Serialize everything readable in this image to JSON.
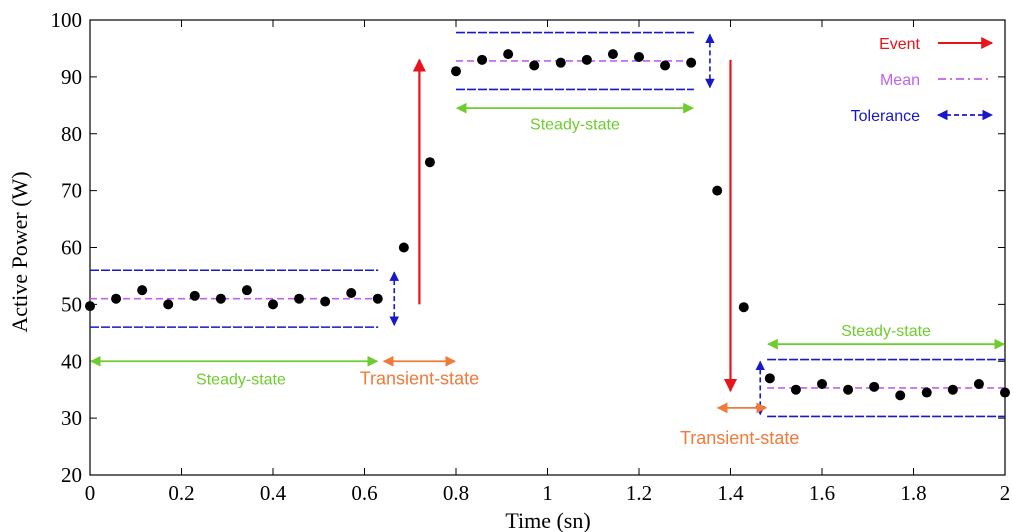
{
  "chart_data": {
    "type": "scatter",
    "title": "",
    "xlabel": "Time (sn)",
    "ylabel": "Active Power (W)",
    "xlim": [
      0,
      2
    ],
    "ylim": [
      20,
      100
    ],
    "xticks": [
      0,
      0.2,
      0.4,
      0.6,
      0.8,
      1,
      1.2,
      1.4,
      1.6,
      1.8,
      2
    ],
    "xtick_labels": [
      "0",
      "0.2",
      "0.4",
      "0.6",
      "0.8",
      "1",
      "1.2",
      "1.4",
      "1.6",
      "1.8",
      "2"
    ],
    "yticks": [
      20,
      30,
      40,
      50,
      60,
      70,
      80,
      90,
      100
    ],
    "ytick_labels": [
      "20",
      "30",
      "40",
      "50",
      "60",
      "70",
      "80",
      "90",
      "100"
    ],
    "grid": false,
    "legend_position": "top-right",
    "colors": {
      "points": "#000000",
      "event": "#e8141b",
      "mean": "#c061f0",
      "tolerance": "#1818c8",
      "steady": "#6fcc2e",
      "transient": "#f07a3a"
    },
    "legend": [
      {
        "label": "Event",
        "kind": "event"
      },
      {
        "label": "Mean",
        "kind": "mean"
      },
      {
        "label": "Tolerance",
        "kind": "tolerance"
      }
    ],
    "series": [
      {
        "x": [
          0,
          0.057,
          0.114,
          0.171,
          0.229,
          0.286,
          0.343,
          0.4,
          0.457,
          0.514,
          0.571,
          0.629,
          0.686,
          0.743,
          0.8,
          0.857,
          0.914,
          0.971,
          1.029,
          1.086,
          1.143,
          1.2,
          1.257,
          1.314,
          1.371,
          1.429,
          1.486,
          1.543,
          1.6,
          1.657,
          1.714,
          1.771,
          1.829,
          1.886,
          1.943,
          2.0
        ],
        "y": [
          49.7,
          51,
          52.5,
          50,
          51.5,
          51,
          52.5,
          50,
          51,
          50.5,
          52,
          51,
          60,
          75,
          91,
          93,
          94,
          92,
          92.5,
          93,
          94,
          93.5,
          92,
          92.5,
          70,
          49.5,
          37,
          35,
          36,
          35,
          35.5,
          34,
          34.5,
          35,
          36,
          34.5
        ]
      }
    ],
    "steady_segments": [
      {
        "x_start": 0,
        "x_end": 0.63,
        "mean": 51,
        "tol_upper": 56,
        "tol_lower": 46
      },
      {
        "x_start": 0.8,
        "x_end": 1.32,
        "mean": 92.8,
        "tol_upper": 97.8,
        "tol_lower": 87.8
      },
      {
        "x_start": 1.48,
        "x_end": 2.0,
        "mean": 35.3,
        "tol_upper": 40.3,
        "tol_lower": 30.3
      }
    ],
    "events": [
      {
        "x": 0.72,
        "y_from": 50,
        "y_to": 93
      },
      {
        "x": 1.4,
        "y_from": 93,
        "y_to": 34.8
      }
    ],
    "tolerance_markers": [
      {
        "x": 0.665,
        "y_from": 46,
        "y_to": 56
      },
      {
        "x": 1.355,
        "y_from": 87.8,
        "y_to": 97.8
      },
      {
        "x": 1.465,
        "y_from": 30.3,
        "y_to": 40.3
      }
    ],
    "state_annotations": [
      {
        "label": "Steady-state",
        "kind": "steady",
        "x_start": 0,
        "x_end": 0.63,
        "y": 40,
        "label_y": 37,
        "label_x": 0.33
      },
      {
        "label": "Transient-state",
        "kind": "transient",
        "x_start": 0.64,
        "x_end": 0.8,
        "y": 40,
        "label_y": 37,
        "label_x": 0.72
      },
      {
        "label": "Steady-state",
        "kind": "steady",
        "x_start": 0.8,
        "x_end": 1.32,
        "y": 84.5,
        "label_y": 81.8,
        "label_x": 1.06
      },
      {
        "label": "Transient-state",
        "kind": "transient",
        "x_start": 1.37,
        "x_end": 1.48,
        "y": 31.8,
        "label_y": 26.5,
        "label_x": 1.42
      },
      {
        "label": "Steady-state",
        "kind": "steady",
        "x_start": 1.48,
        "x_end": 2.0,
        "y": 43,
        "label_y": 45.5,
        "label_x": 1.74
      }
    ]
  }
}
